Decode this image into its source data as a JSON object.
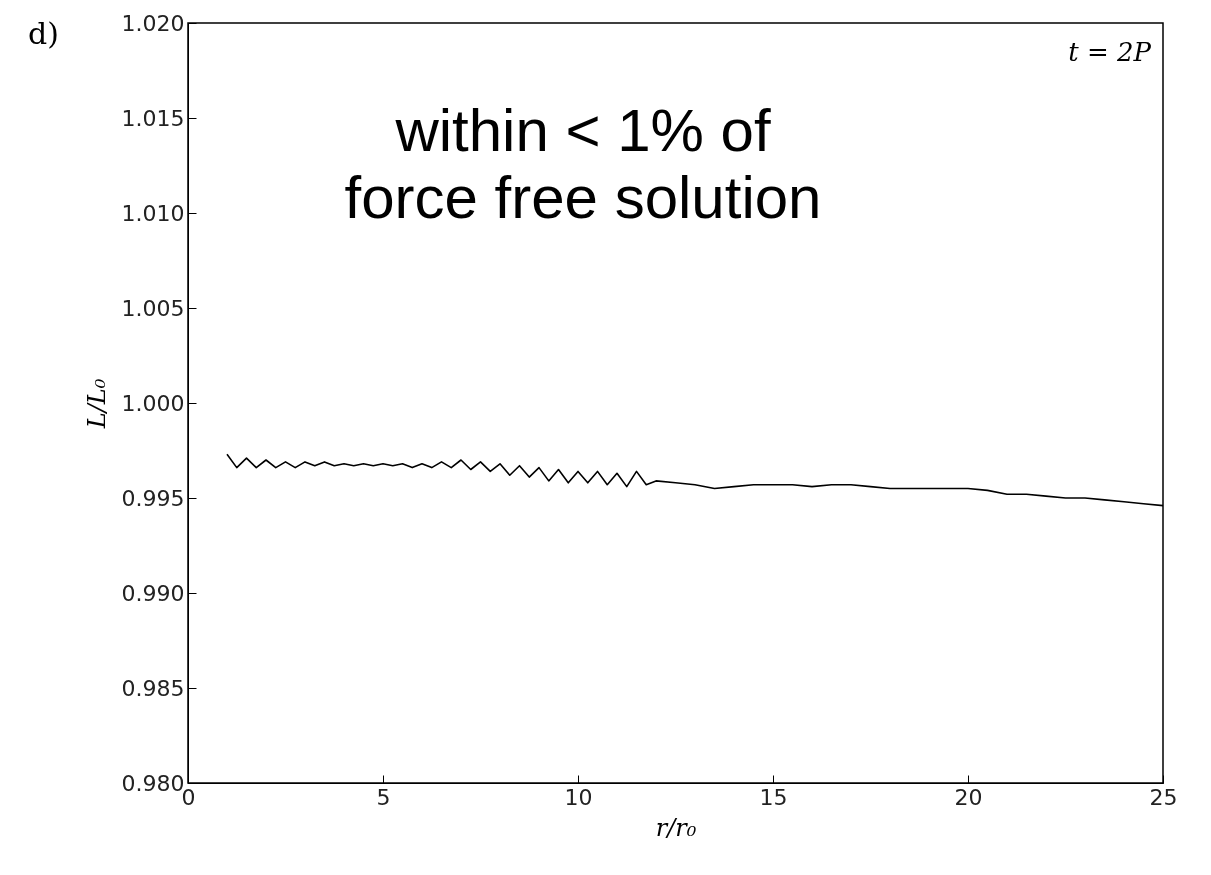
{
  "chart_data": {
    "type": "line",
    "title": "d)",
    "xlabel": "r/r₀",
    "ylabel": "L/L₀",
    "annotations": [
      "t = 2P",
      "within < 1% of\nforce free solution"
    ],
    "x": [
      1,
      1.25,
      1.5,
      1.75,
      2,
      2.25,
      2.5,
      2.75,
      3,
      3.25,
      3.5,
      3.75,
      4,
      4.25,
      4.5,
      4.75,
      5,
      5.25,
      5.5,
      5.75,
      6,
      6.25,
      6.5,
      6.75,
      7,
      7.25,
      7.5,
      7.75,
      8,
      8.25,
      8.5,
      8.75,
      9,
      9.25,
      9.5,
      9.75,
      10,
      10.25,
      10.5,
      10.75,
      11,
      11.25,
      11.5,
      11.75,
      12,
      12.5,
      13,
      13.5,
      14,
      14.5,
      15,
      15.5,
      16,
      16.5,
      17,
      17.5,
      18,
      18.5,
      19,
      19.5,
      20,
      20.5,
      21,
      21.5,
      22,
      22.5,
      23,
      23.5,
      24,
      24.5,
      25
    ],
    "series": [
      {
        "color": "#000000",
        "values": [
          0.9973,
          0.9966,
          0.9971,
          0.9966,
          0.997,
          0.9966,
          0.9969,
          0.9966,
          0.9969,
          0.9967,
          0.9969,
          0.9967,
          0.9968,
          0.9967,
          0.9968,
          0.9967,
          0.9968,
          0.9967,
          0.9968,
          0.9966,
          0.9968,
          0.9966,
          0.9969,
          0.9966,
          0.997,
          0.9965,
          0.9969,
          0.9964,
          0.9968,
          0.9962,
          0.9967,
          0.9961,
          0.9966,
          0.9959,
          0.9965,
          0.9958,
          0.9964,
          0.9958,
          0.9964,
          0.9957,
          0.9963,
          0.9956,
          0.9964,
          0.9957,
          0.9959,
          0.9958,
          0.9957,
          0.9955,
          0.9956,
          0.9957,
          0.9957,
          0.9957,
          0.9956,
          0.9957,
          0.9957,
          0.9956,
          0.9955,
          0.9955,
          0.9955,
          0.9955,
          0.9955,
          0.9954,
          0.9952,
          0.9952,
          0.9951,
          0.995,
          0.995,
          0.9949,
          0.9948,
          0.9947,
          0.9946
        ]
      }
    ],
    "xlim": [
      0,
      25
    ],
    "xticks": [
      0,
      5,
      10,
      15,
      20,
      25
    ],
    "ylim": [
      0.98,
      1.02
    ],
    "yticks": [
      {
        "value": 0.98,
        "label": "0.980"
      },
      {
        "value": 0.985,
        "label": "0.985"
      },
      {
        "value": 0.99,
        "label": "0.990"
      },
      {
        "value": 0.995,
        "label": "0.995"
      },
      {
        "value": 1.0,
        "label": "1.000"
      },
      {
        "value": 1.005,
        "label": "1.005"
      },
      {
        "value": 1.01,
        "label": "1.010"
      },
      {
        "value": 1.015,
        "label": "1.015"
      },
      {
        "value": 1.02,
        "label": "1.020"
      }
    ],
    "grid": false,
    "marker": "none",
    "line_style": "solid"
  }
}
